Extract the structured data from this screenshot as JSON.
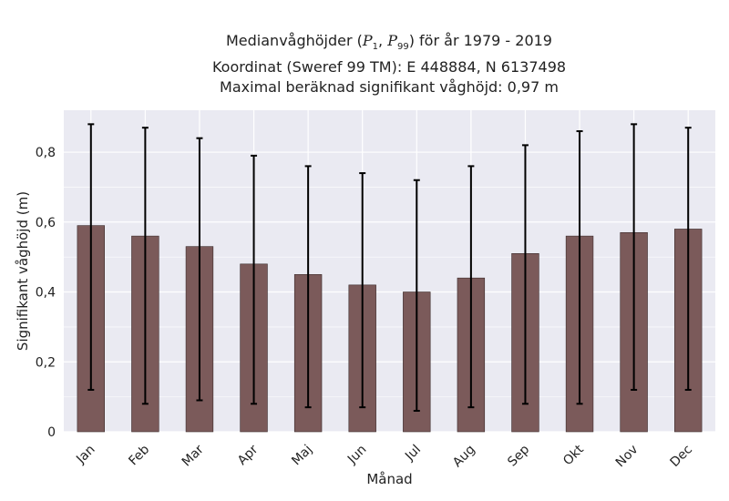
{
  "chart_data": {
    "type": "bar",
    "title": {
      "line1_prefix": "Medianvåghöjder (",
      "line1_p1": "P",
      "line1_p1_sub": "1",
      "line1_sep": ", ",
      "line1_p99": "P",
      "line1_p99_sub": "99",
      "line1_suffix": ") för år 1979 - 2019",
      "line2": "Koordinat (Sweref 99 TM): E 448884, N 6137498",
      "line3": "Maximal beräknad signifikant våghöjd: 0,97 m"
    },
    "xlabel": "Månad",
    "ylabel": "Signifikant våghöjd (m)",
    "ylim": [
      0,
      0.92
    ],
    "yticks": [
      0,
      0.2,
      0.4,
      0.6,
      0.8
    ],
    "ytick_labels": [
      "0",
      "0,2",
      "0,4",
      "0,6",
      "0,8"
    ],
    "categories": [
      "Jan",
      "Feb",
      "Mar",
      "Apr",
      "Maj",
      "Jun",
      "Jul",
      "Aug",
      "Sep",
      "Okt",
      "Nov",
      "Dec"
    ],
    "values": [
      0.59,
      0.56,
      0.53,
      0.48,
      0.45,
      0.42,
      0.4,
      0.44,
      0.51,
      0.56,
      0.57,
      0.58
    ],
    "p1": [
      0.12,
      0.08,
      0.09,
      0.08,
      0.07,
      0.07,
      0.06,
      0.07,
      0.08,
      0.08,
      0.12,
      0.12
    ],
    "p99": [
      0.88,
      0.87,
      0.84,
      0.79,
      0.76,
      0.74,
      0.72,
      0.76,
      0.82,
      0.86,
      0.88,
      0.87
    ],
    "grid": true,
    "colors": {
      "bar": "#7b5a5a",
      "bar_edge": "#3a2a2a",
      "error": "#000000",
      "background": "#eaeaf2",
      "grid": "#ffffff"
    }
  }
}
